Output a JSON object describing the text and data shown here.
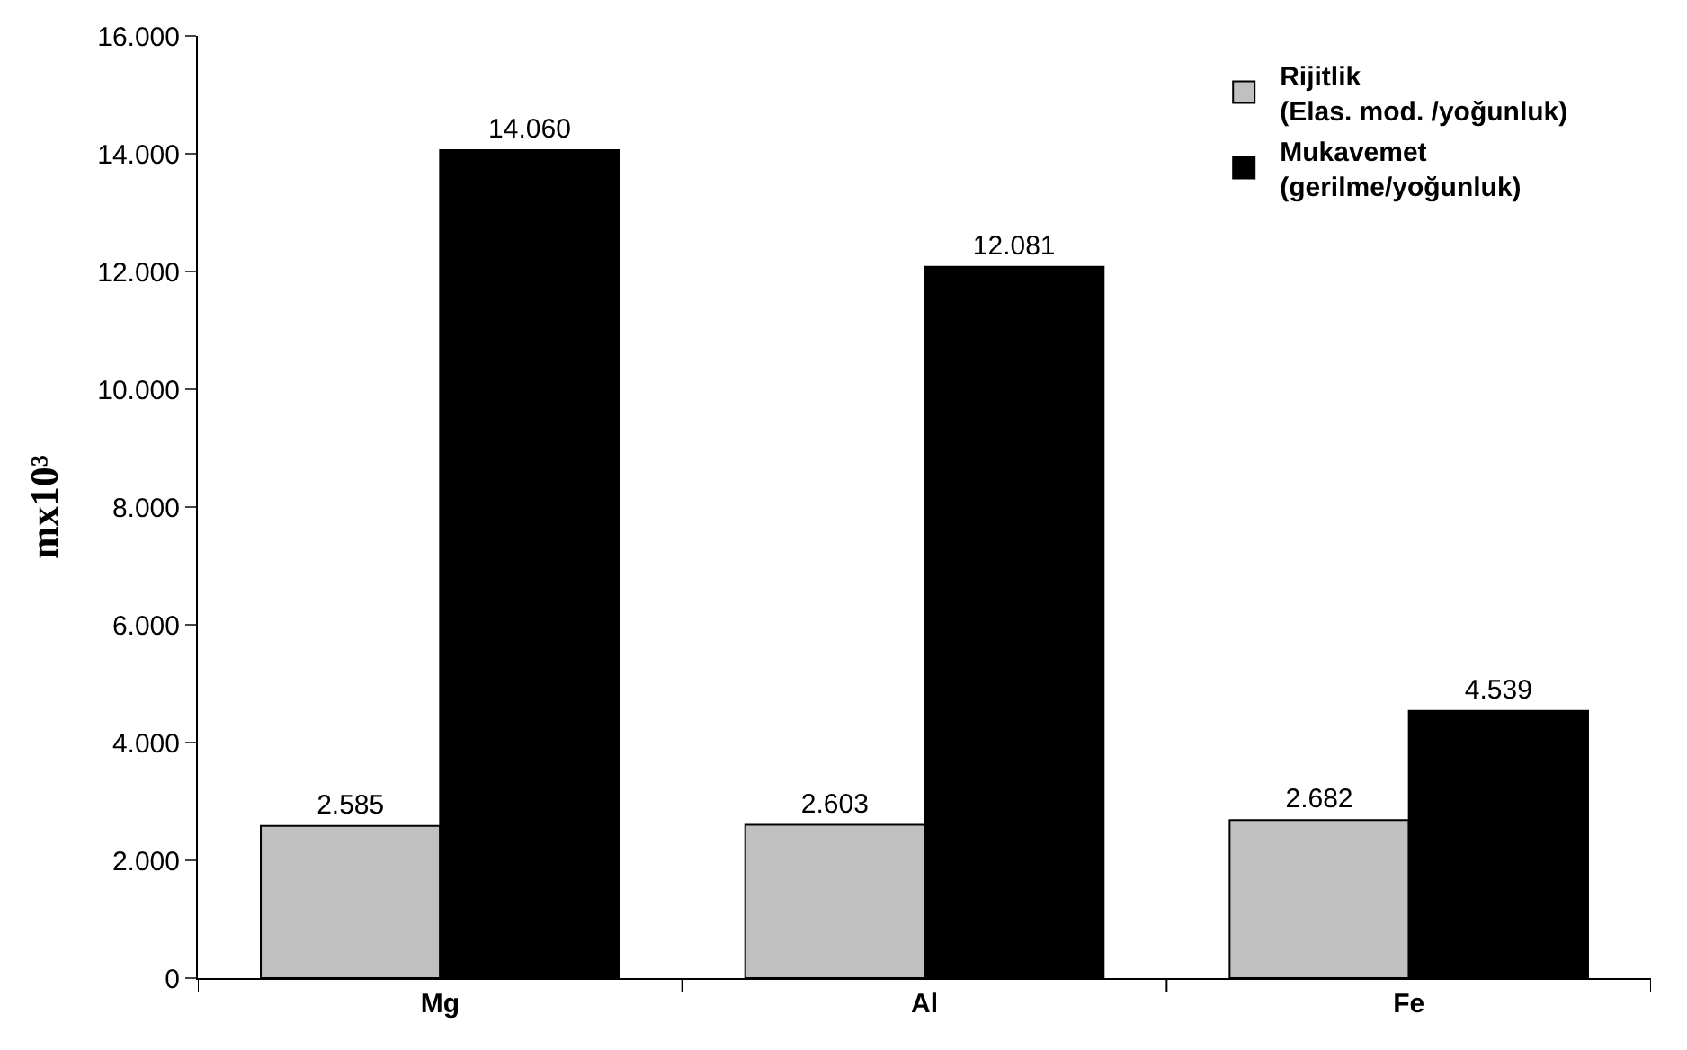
{
  "chart_data": {
    "type": "bar",
    "ylabel": "mx10³",
    "categories": [
      "Mg",
      "Al",
      "Fe"
    ],
    "series": [
      {
        "name": "Rijitlik\n(Elas. mod. /yoğunluk)",
        "color": "#c0c0c0",
        "values": [
          2585,
          2603,
          2682
        ],
        "value_labels": [
          "2.585",
          "2.603",
          "2.682"
        ]
      },
      {
        "name": "Mukavemet\n(gerilme/yoğunluk)",
        "color": "#000000",
        "values": [
          14060,
          12081,
          4539
        ],
        "value_labels": [
          "14.060",
          "12.081",
          "4.539"
        ]
      }
    ],
    "ylim": [
      0,
      16000
    ],
    "yticks": [
      {
        "value": 0,
        "label": "0"
      },
      {
        "value": 2000,
        "label": "2.000"
      },
      {
        "value": 4000,
        "label": "4.000"
      },
      {
        "value": 6000,
        "label": "6.000"
      },
      {
        "value": 8000,
        "label": "8.000"
      },
      {
        "value": 10000,
        "label": "10.000"
      },
      {
        "value": 12000,
        "label": "12.000"
      },
      {
        "value": 14000,
        "label": "14.000"
      },
      {
        "value": 16000,
        "label": "16.000"
      }
    ],
    "legend": "top right"
  }
}
